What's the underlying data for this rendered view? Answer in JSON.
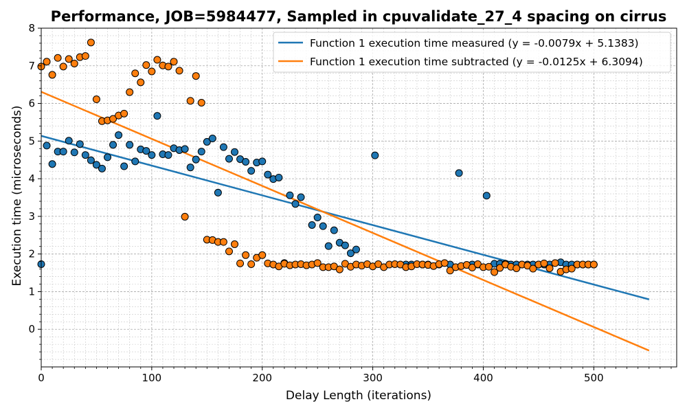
{
  "chart_data": {
    "type": "scatter",
    "title": "Performance, JOB=5984477, Sampled in cpuvalidate_27_4 spacing on cirrus",
    "xlabel": "Delay Length (iterations)",
    "ylabel": "Execution time (microseconds)",
    "xlim": [
      0,
      575
    ],
    "ylim": [
      -1,
      8
    ],
    "x_ticks": [
      0,
      100,
      200,
      300,
      400,
      500
    ],
    "y_ticks": [
      0,
      1,
      2,
      3,
      4,
      5,
      6,
      7,
      8
    ],
    "grid": true,
    "legend_position": "top-right",
    "series": [
      {
        "name": "Function 1 execution time measured (y = -0.0079x + 5.1383)",
        "color": "#1f77b4",
        "fit": {
          "slope": -0.0079,
          "intercept": 5.1383,
          "x_range": [
            0,
            550
          ]
        },
        "points": [
          [
            0,
            1.73
          ],
          [
            5,
            4.88
          ],
          [
            10,
            4.39
          ],
          [
            15,
            4.72
          ],
          [
            20,
            4.72
          ],
          [
            25,
            5.01
          ],
          [
            30,
            4.7
          ],
          [
            35,
            4.92
          ],
          [
            40,
            4.63
          ],
          [
            45,
            4.49
          ],
          [
            50,
            4.37
          ],
          [
            55,
            4.27
          ],
          [
            60,
            4.57
          ],
          [
            65,
            4.9
          ],
          [
            70,
            5.16
          ],
          [
            75,
            4.33
          ],
          [
            80,
            4.9
          ],
          [
            85,
            4.46
          ],
          [
            90,
            4.78
          ],
          [
            95,
            4.74
          ],
          [
            100,
            4.63
          ],
          [
            105,
            5.67
          ],
          [
            110,
            4.65
          ],
          [
            115,
            4.63
          ],
          [
            120,
            4.81
          ],
          [
            125,
            4.76
          ],
          [
            130,
            4.79
          ],
          [
            135,
            4.3
          ],
          [
            140,
            4.51
          ],
          [
            145,
            4.72
          ],
          [
            150,
            4.98
          ],
          [
            155,
            5.07
          ],
          [
            160,
            3.63
          ],
          [
            165,
            4.84
          ],
          [
            170,
            4.53
          ],
          [
            175,
            4.71
          ],
          [
            180,
            4.52
          ],
          [
            185,
            4.45
          ],
          [
            190,
            4.21
          ],
          [
            195,
            4.43
          ],
          [
            200,
            4.46
          ],
          [
            205,
            4.11
          ],
          [
            210,
            3.99
          ],
          [
            215,
            4.03
          ],
          [
            220,
            1.76
          ],
          [
            225,
            3.56
          ],
          [
            230,
            3.33
          ],
          [
            235,
            3.51
          ],
          [
            245,
            2.77
          ],
          [
            250,
            2.97
          ],
          [
            255,
            2.74
          ],
          [
            260,
            2.21
          ],
          [
            265,
            2.63
          ],
          [
            270,
            2.3
          ],
          [
            275,
            2.23
          ],
          [
            280,
            2.02
          ],
          [
            285,
            2.12
          ],
          [
            302,
            4.62
          ],
          [
            330,
            1.72
          ],
          [
            335,
            1.72
          ],
          [
            345,
            1.72
          ],
          [
            350,
            1.72
          ],
          [
            360,
            1.72
          ],
          [
            370,
            1.72
          ],
          [
            378,
            4.15
          ],
          [
            390,
            1.72
          ],
          [
            395,
            1.72
          ],
          [
            403,
            3.55
          ],
          [
            410,
            1.74
          ],
          [
            415,
            1.74
          ],
          [
            420,
            1.74
          ],
          [
            425,
            1.72
          ],
          [
            430,
            1.72
          ],
          [
            435,
            1.72
          ],
          [
            440,
            1.72
          ],
          [
            445,
            1.72
          ],
          [
            450,
            1.72
          ],
          [
            455,
            1.72
          ],
          [
            460,
            1.72
          ],
          [
            470,
            1.78
          ],
          [
            475,
            1.72
          ],
          [
            480,
            1.72
          ],
          [
            485,
            1.72
          ],
          [
            490,
            1.72
          ],
          [
            495,
            1.72
          ],
          [
            500,
            1.72
          ]
        ]
      },
      {
        "name": "Function 1 execution time subtracted (y = -0.0125x + 6.3094)",
        "color": "#ff7f0e",
        "fit": {
          "slope": -0.0125,
          "intercept": 6.3094,
          "x_range": [
            0,
            550
          ]
        },
        "points": [
          [
            0,
            6.98
          ],
          [
            5,
            7.11
          ],
          [
            10,
            6.76
          ],
          [
            15,
            7.21
          ],
          [
            20,
            6.98
          ],
          [
            25,
            7.18
          ],
          [
            30,
            7.06
          ],
          [
            35,
            7.23
          ],
          [
            40,
            7.26
          ],
          [
            45,
            7.62
          ],
          [
            50,
            6.11
          ],
          [
            55,
            5.53
          ],
          [
            60,
            5.55
          ],
          [
            65,
            5.59
          ],
          [
            70,
            5.68
          ],
          [
            75,
            5.73
          ],
          [
            80,
            6.3
          ],
          [
            85,
            6.8
          ],
          [
            90,
            6.56
          ],
          [
            95,
            7.02
          ],
          [
            100,
            6.85
          ],
          [
            105,
            7.16
          ],
          [
            110,
            7.01
          ],
          [
            115,
            6.98
          ],
          [
            120,
            7.11
          ],
          [
            125,
            6.87
          ],
          [
            130,
            2.99
          ],
          [
            135,
            6.07
          ],
          [
            140,
            6.73
          ],
          [
            145,
            6.02
          ],
          [
            150,
            2.38
          ],
          [
            155,
            2.37
          ],
          [
            160,
            2.32
          ],
          [
            165,
            2.32
          ],
          [
            170,
            2.07
          ],
          [
            175,
            2.26
          ],
          [
            180,
            1.75
          ],
          [
            185,
            1.97
          ],
          [
            190,
            1.73
          ],
          [
            195,
            1.9
          ],
          [
            200,
            1.97
          ],
          [
            205,
            1.75
          ],
          [
            210,
            1.72
          ],
          [
            215,
            1.67
          ],
          [
            220,
            1.74
          ],
          [
            225,
            1.7
          ],
          [
            230,
            1.72
          ],
          [
            235,
            1.73
          ],
          [
            240,
            1.7
          ],
          [
            245,
            1.72
          ],
          [
            250,
            1.76
          ],
          [
            255,
            1.65
          ],
          [
            260,
            1.65
          ],
          [
            265,
            1.67
          ],
          [
            270,
            1.59
          ],
          [
            275,
            1.74
          ],
          [
            280,
            1.66
          ],
          [
            285,
            1.72
          ],
          [
            290,
            1.69
          ],
          [
            295,
            1.73
          ],
          [
            300,
            1.67
          ],
          [
            305,
            1.73
          ],
          [
            310,
            1.65
          ],
          [
            315,
            1.72
          ],
          [
            320,
            1.73
          ],
          [
            325,
            1.72
          ],
          [
            330,
            1.65
          ],
          [
            335,
            1.67
          ],
          [
            340,
            1.73
          ],
          [
            345,
            1.72
          ],
          [
            350,
            1.71
          ],
          [
            355,
            1.68
          ],
          [
            360,
            1.73
          ],
          [
            365,
            1.76
          ],
          [
            370,
            1.56
          ],
          [
            375,
            1.65
          ],
          [
            380,
            1.68
          ],
          [
            385,
            1.71
          ],
          [
            390,
            1.64
          ],
          [
            395,
            1.73
          ],
          [
            400,
            1.65
          ],
          [
            405,
            1.66
          ],
          [
            410,
            1.52
          ],
          [
            415,
            1.63
          ],
          [
            420,
            1.72
          ],
          [
            425,
            1.66
          ],
          [
            430,
            1.62
          ],
          [
            435,
            1.72
          ],
          [
            440,
            1.69
          ],
          [
            445,
            1.61
          ],
          [
            450,
            1.72
          ],
          [
            455,
            1.75
          ],
          [
            460,
            1.62
          ],
          [
            465,
            1.76
          ],
          [
            470,
            1.53
          ],
          [
            475,
            1.59
          ],
          [
            480,
            1.61
          ],
          [
            485,
            1.72
          ],
          [
            490,
            1.72
          ],
          [
            495,
            1.72
          ],
          [
            500,
            1.72
          ]
        ]
      }
    ]
  }
}
